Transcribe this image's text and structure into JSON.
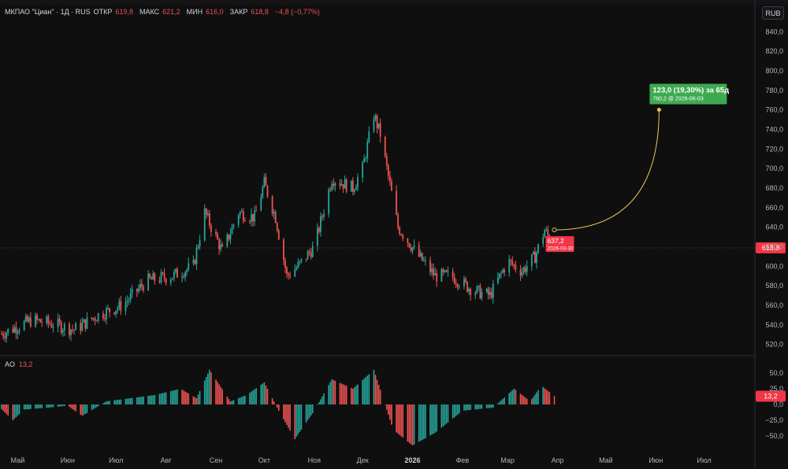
{
  "legend": {
    "symbol": "МКПАО \"Циан\" · 1Д · RUS",
    "open_label": "ОТКР",
    "open": "619,8",
    "high_label": "МАКС",
    "high": "621,2",
    "low_label": "МИН",
    "low": "616,0",
    "close_label": "ЗАКР",
    "close": "618,8",
    "change": "−4,8 (−0,77%)"
  },
  "currency_button": "RUB",
  "ao_legend": {
    "name": "AO",
    "value": "13,2"
  },
  "chart_data": [
    {
      "type": "candlestick",
      "title": "",
      "ylim": [
        510,
        850
      ],
      "y_ticks": [
        "520,0",
        "540,0",
        "560,0",
        "580,0",
        "600,0",
        "620,0",
        "640,0",
        "660,0",
        "680,0",
        "700,0",
        "720,0",
        "740,0",
        "760,0",
        "780,0",
        "800,0",
        "820,0",
        "840,0"
      ],
      "y_tick_values": [
        520,
        540,
        560,
        580,
        600,
        620,
        640,
        660,
        680,
        700,
        720,
        740,
        760,
        780,
        800,
        820,
        840
      ],
      "x_labels": [
        "Май",
        "Июн",
        "Июл",
        "Авг",
        "Сен",
        "Окт",
        "Ноя",
        "Дек",
        "2026",
        "Фев",
        "Мар",
        "Апр",
        "Май",
        "Июн",
        "Июл"
      ],
      "x_label_dates": [
        "2025-05-01",
        "2025-06-01",
        "2025-07-01",
        "2025-08-01",
        "2025-09-01",
        "2025-10-01",
        "2025-11-01",
        "2025-12-01",
        "2026-01-01",
        "2026-02-01",
        "2026-03-01",
        "2026-04-01",
        "2026-05-01",
        "2026-06-01",
        "2026-07-01"
      ],
      "x_range": [
        "2025-04-20",
        "2026-07-31"
      ],
      "price_path": [
        [
          "2025-04-20",
          530
        ],
        [
          "2025-05-10",
          545
        ],
        [
          "2025-05-25",
          540
        ],
        [
          "2025-06-05",
          535
        ],
        [
          "2025-06-20",
          550
        ],
        [
          "2025-07-05",
          560
        ],
        [
          "2025-07-20",
          585
        ],
        [
          "2025-08-05",
          590
        ],
        [
          "2025-08-18",
          600
        ],
        [
          "2025-08-25",
          655
        ],
        [
          "2025-09-05",
          615
        ],
        [
          "2025-09-15",
          655
        ],
        [
          "2025-09-25",
          650
        ],
        [
          "2025-10-01",
          685
        ],
        [
          "2025-10-08",
          650
        ],
        [
          "2025-10-15",
          590
        ],
        [
          "2025-10-22",
          600
        ],
        [
          "2025-11-01",
          620
        ],
        [
          "2025-11-12",
          690
        ],
        [
          "2025-11-25",
          680
        ],
        [
          "2025-12-01",
          700
        ],
        [
          "2025-12-08",
          755
        ],
        [
          "2025-12-12",
          735
        ],
        [
          "2025-12-23",
          640
        ],
        [
          "2026-01-05",
          610
        ],
        [
          "2026-01-15",
          590
        ],
        [
          "2026-01-25",
          590
        ],
        [
          "2026-02-08",
          575
        ],
        [
          "2026-02-18",
          570
        ],
        [
          "2026-03-01",
          605
        ],
        [
          "2026-03-10",
          595
        ],
        [
          "2026-03-18",
          610
        ],
        [
          "2026-03-24",
          637
        ],
        [
          "2026-03-30",
          618.8
        ]
      ],
      "current_price": {
        "value": 618.8,
        "label": "618,8"
      },
      "projection": {
        "from": {
          "date": "2026-03-30",
          "value": 637.2,
          "label": "637,2",
          "date_label": "2026-03-30"
        },
        "to": {
          "date": "2026-06-03",
          "value": 760.2,
          "label": "123,0 (19,30%) за 65д",
          "sublabel": "760,2 @ 2026-06-03"
        }
      }
    },
    {
      "type": "bar",
      "title": "AO",
      "ylim": [
        -70,
        65
      ],
      "y_ticks": [
        "50,0",
        "25,0",
        "0,0",
        "−25,0",
        "−50,0"
      ],
      "y_tick_values": [
        50,
        25,
        0,
        -25,
        -50
      ],
      "path": [
        [
          "2025-04-20",
          -5
        ],
        [
          "2025-04-28",
          -25
        ],
        [
          "2025-05-05",
          -8
        ],
        [
          "2025-05-20",
          -5
        ],
        [
          "2025-06-01",
          -2
        ],
        [
          "2025-06-10",
          -18
        ],
        [
          "2025-06-25",
          5
        ],
        [
          "2025-07-10",
          10
        ],
        [
          "2025-07-25",
          15
        ],
        [
          "2025-08-10",
          25
        ],
        [
          "2025-08-20",
          10
        ],
        [
          "2025-08-28",
          55
        ],
        [
          "2025-09-10",
          5
        ],
        [
          "2025-09-20",
          15
        ],
        [
          "2025-10-01",
          35
        ],
        [
          "2025-10-10",
          -10
        ],
        [
          "2025-10-20",
          -55
        ],
        [
          "2025-11-01",
          -10
        ],
        [
          "2025-11-12",
          40
        ],
        [
          "2025-11-25",
          25
        ],
        [
          "2025-12-08",
          55
        ],
        [
          "2025-12-20",
          -40
        ],
        [
          "2026-01-01",
          -65
        ],
        [
          "2026-01-15",
          -45
        ],
        [
          "2026-02-01",
          -10
        ],
        [
          "2026-02-20",
          -5
        ],
        [
          "2026-03-05",
          25
        ],
        [
          "2026-03-15",
          5
        ],
        [
          "2026-03-22",
          30
        ],
        [
          "2026-03-30",
          13.2
        ]
      ],
      "current_value": {
        "value": 13.2,
        "label": "13,2"
      }
    }
  ],
  "colors": {
    "up": "#26a69a",
    "down": "#ef5350",
    "background": "#0f0f10",
    "projection_line": "#e3c75a",
    "projection_label": "#3eaa4f",
    "price_label": "#f23645"
  }
}
